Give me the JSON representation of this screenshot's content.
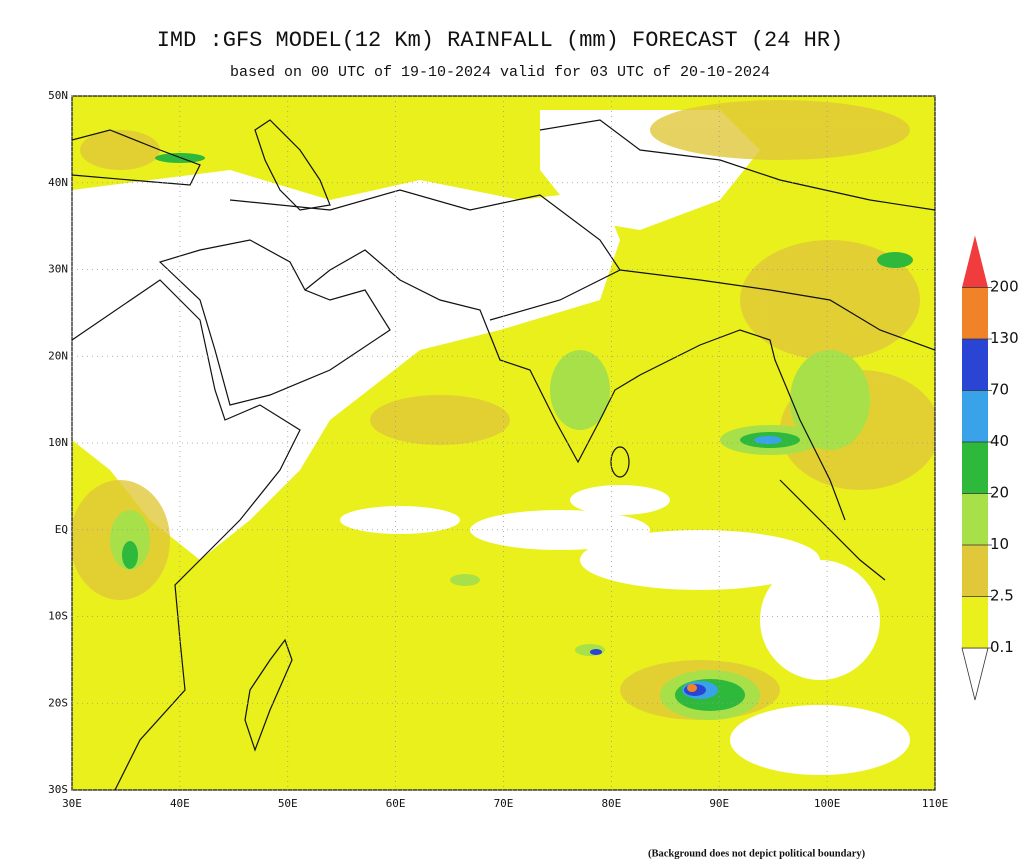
{
  "header": {
    "title": "IMD :GFS MODEL(12 Km) RAINFALL (mm) FORECAST (24 HR)",
    "subtitle": "based on 00 UTC of 19-10-2024 valid for 03 UTC of 20-10-2024"
  },
  "map": {
    "lat_ticks": [
      {
        "value": 50,
        "label": "50N"
      },
      {
        "value": 40,
        "label": "40N"
      },
      {
        "value": 30,
        "label": "30N"
      },
      {
        "value": 20,
        "label": "20N"
      },
      {
        "value": 10,
        "label": "10N"
      },
      {
        "value": 0,
        "label": "EQ"
      },
      {
        "value": -10,
        "label": "10S"
      },
      {
        "value": -20,
        "label": "20S"
      },
      {
        "value": -30,
        "label": "30S"
      }
    ],
    "lon_ticks": [
      {
        "value": 30,
        "label": "30E"
      },
      {
        "value": 40,
        "label": "40E"
      },
      {
        "value": 50,
        "label": "50E"
      },
      {
        "value": 60,
        "label": "60E"
      },
      {
        "value": 70,
        "label": "70E"
      },
      {
        "value": 80,
        "label": "80E"
      },
      {
        "value": 90,
        "label": "90E"
      },
      {
        "value": 100,
        "label": "100E"
      },
      {
        "value": 110,
        "label": "110E"
      }
    ],
    "latlim": [
      -30,
      50
    ],
    "lonlim": [
      30,
      110
    ]
  },
  "colorbar": {
    "levels": [
      0.1,
      2.5,
      10,
      20,
      40,
      70,
      130,
      200
    ],
    "colors": [
      "#e9f01c",
      "#e0c83a",
      "#a8e04a",
      "#2eb83c",
      "#3aa2e8",
      "#2a44d4",
      "#f0832a",
      "#f03c3c"
    ]
  },
  "footer": {
    "note": "(Background does not depict political boundary)"
  }
}
